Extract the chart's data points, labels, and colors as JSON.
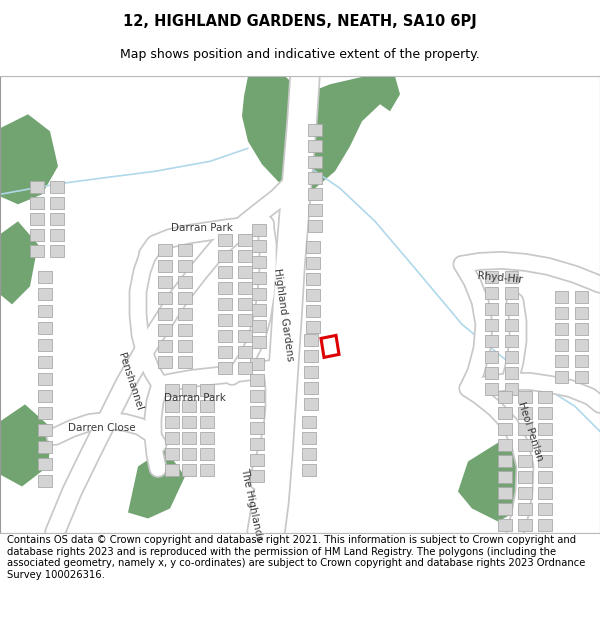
{
  "title": "12, HIGHLAND GARDENS, NEATH, SA10 6PJ",
  "subtitle": "Map shows position and indicative extent of the property.",
  "footer": "Contains OS data © Crown copyright and database right 2021. This information is subject to Crown copyright and database rights 2023 and is reproduced with the permission of HM Land Registry. The polygons (including the associated geometry, namely x, y co-ordinates) are subject to Crown copyright and database rights 2023 Ordnance Survey 100026316.",
  "map_bg": "#f5f5f5",
  "road_color": "#ffffff",
  "road_edge_color": "#c8c8c8",
  "building_color": "#d4d4d4",
  "building_edge_color": "#aaaaaa",
  "green_color": "#72a472",
  "water_color": "#b0d8ea",
  "highlight_color": "#dd0000",
  "title_fontsize": 10.5,
  "subtitle_fontsize": 9,
  "footer_fontsize": 7.2,
  "label_fontsize": 7.5
}
